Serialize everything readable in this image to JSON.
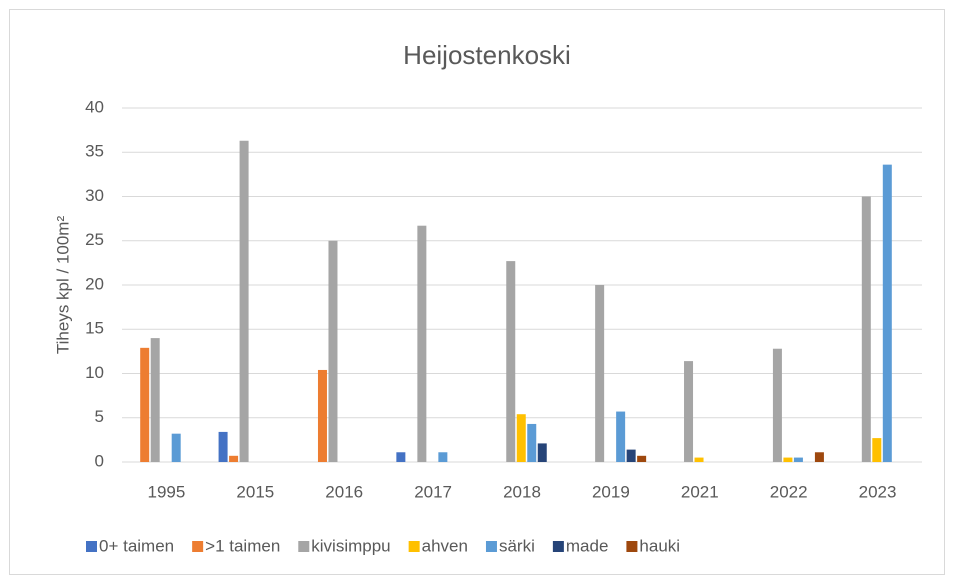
{
  "chart_data": {
    "type": "bar",
    "title": "Heijostenkoski",
    "y_label": "Tiheys kpl / 100m²",
    "categories": [
      "1995",
      "2015",
      "2016",
      "2017",
      "2018",
      "2019",
      "2021",
      "2022",
      "2023"
    ],
    "series": [
      {
        "name": "0+ taimen",
        "color": "#4472c4",
        "values": [
          0,
          3.4,
          0,
          1.1,
          0,
          0,
          0,
          0,
          0
        ]
      },
      {
        "name": ">1 taimen",
        "color": "#ed7d31",
        "values": [
          12.9,
          0.7,
          10.4,
          0,
          0,
          0,
          0,
          0,
          0
        ]
      },
      {
        "name": "kivisimppu",
        "color": "#a5a5a5",
        "values": [
          14,
          36.3,
          25,
          26.7,
          22.7,
          20,
          11.4,
          12.8,
          30
        ]
      },
      {
        "name": "ahven",
        "color": "#ffc000",
        "values": [
          0,
          0,
          0,
          0,
          5.4,
          0,
          0.5,
          0.5,
          2.7
        ]
      },
      {
        "name": "särki",
        "color": "#5b9bd5",
        "values": [
          3.2,
          0,
          0,
          1.1,
          4.3,
          5.7,
          0,
          0.5,
          33.6
        ]
      },
      {
        "name": "made",
        "color": "#264478",
        "values": [
          0,
          0,
          0,
          0,
          2.1,
          1.4,
          0,
          0,
          0
        ]
      },
      {
        "name": "hauki",
        "color": "#9e480e",
        "values": [
          0,
          0,
          0,
          0,
          0,
          0.7,
          0,
          1.1,
          0
        ]
      }
    ],
    "ylim": [
      0,
      40
    ],
    "yticks": [
      0,
      5,
      10,
      15,
      20,
      25,
      30,
      35,
      40
    ],
    "grid": true,
    "legend": "bottom"
  }
}
